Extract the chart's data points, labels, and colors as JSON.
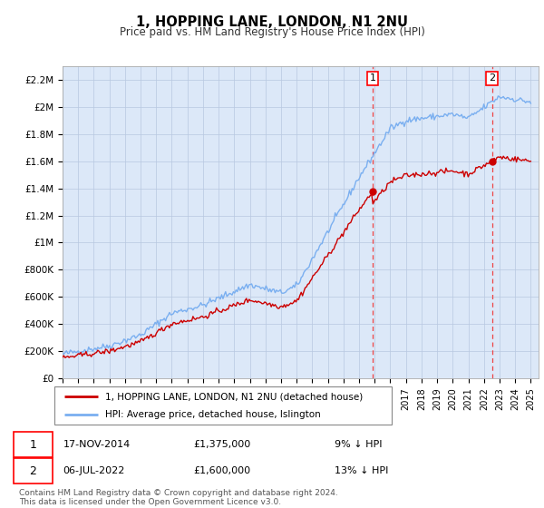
{
  "title": "1, HOPPING LANE, LONDON, N1 2NU",
  "subtitle": "Price paid vs. HM Land Registry's House Price Index (HPI)",
  "ylabel_ticks": [
    "£0",
    "£200K",
    "£400K",
    "£600K",
    "£800K",
    "£1M",
    "£1.2M",
    "£1.4M",
    "£1.6M",
    "£1.8M",
    "£2M",
    "£2.2M"
  ],
  "ytick_values": [
    0,
    200000,
    400000,
    600000,
    800000,
    1000000,
    1200000,
    1400000,
    1600000,
    1800000,
    2000000,
    2200000
  ],
  "ylim": [
    0,
    2300000
  ],
  "xlim_start": 1995.0,
  "xlim_end": 2025.5,
  "purchase1_x": 2014.88,
  "purchase1_y": 1375000,
  "purchase2_x": 2022.51,
  "purchase2_y": 1600000,
  "legend_label1": "1, HOPPING LANE, LONDON, N1 2NU (detached house)",
  "legend_label2": "HPI: Average price, detached house, Islington",
  "annotation1_date": "17-NOV-2014",
  "annotation1_price": "£1,375,000",
  "annotation1_hpi": "9% ↓ HPI",
  "annotation2_date": "06-JUL-2022",
  "annotation2_price": "£1,600,000",
  "annotation2_hpi": "13% ↓ HPI",
  "footer": "Contains HM Land Registry data © Crown copyright and database right 2024.\nThis data is licensed under the Open Government Licence v3.0.",
  "hpi_color": "#7aaff0",
  "price_color": "#cc0000",
  "bg_color": "#dce8f8",
  "grid_color": "#b8c8e0",
  "marker_color": "#cc0000",
  "dashed_line_color": "#ee4444"
}
